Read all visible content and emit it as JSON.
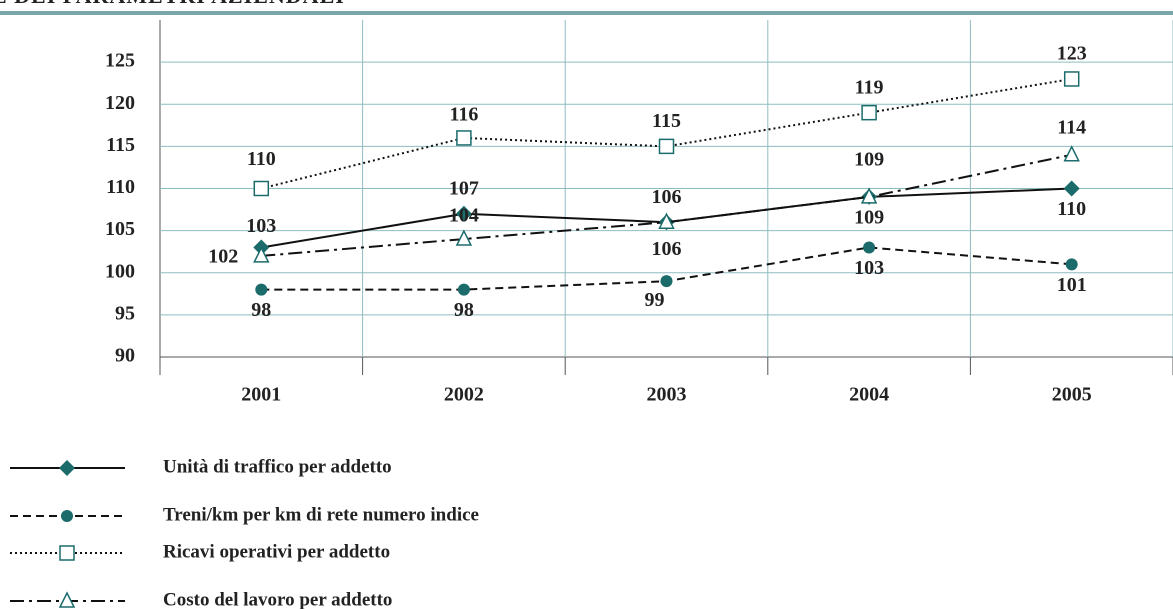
{
  "chart_data": {
    "type": "line",
    "title": "E DEI PARAMETRI AZIENDALI",
    "categories": [
      "2001",
      "2002",
      "2003",
      "2004",
      "2005"
    ],
    "series": [
      {
        "name": "Unità di traffico per addetto",
        "color": "#1b6b6b",
        "values": [
          103,
          107,
          106,
          109,
          110
        ]
      },
      {
        "name": "Treni/km per km di rete numero indice",
        "color": "#1b6b6b",
        "values": [
          98,
          98,
          99,
          103,
          101
        ]
      },
      {
        "name": "Ricavi operativi per addetto",
        "color": "#1b6b6b",
        "values": [
          110,
          116,
          115,
          119,
          123
        ]
      },
      {
        "name": "Costo del lavoro per addetto",
        "color": "#1b6b6b",
        "values": [
          102,
          104,
          106,
          109,
          114
        ]
      }
    ],
    "ylim": [
      90,
      130
    ],
    "yticks": [
      90,
      95,
      100,
      105,
      110,
      115,
      120,
      125
    ],
    "grid": true,
    "legend": "bottom"
  }
}
